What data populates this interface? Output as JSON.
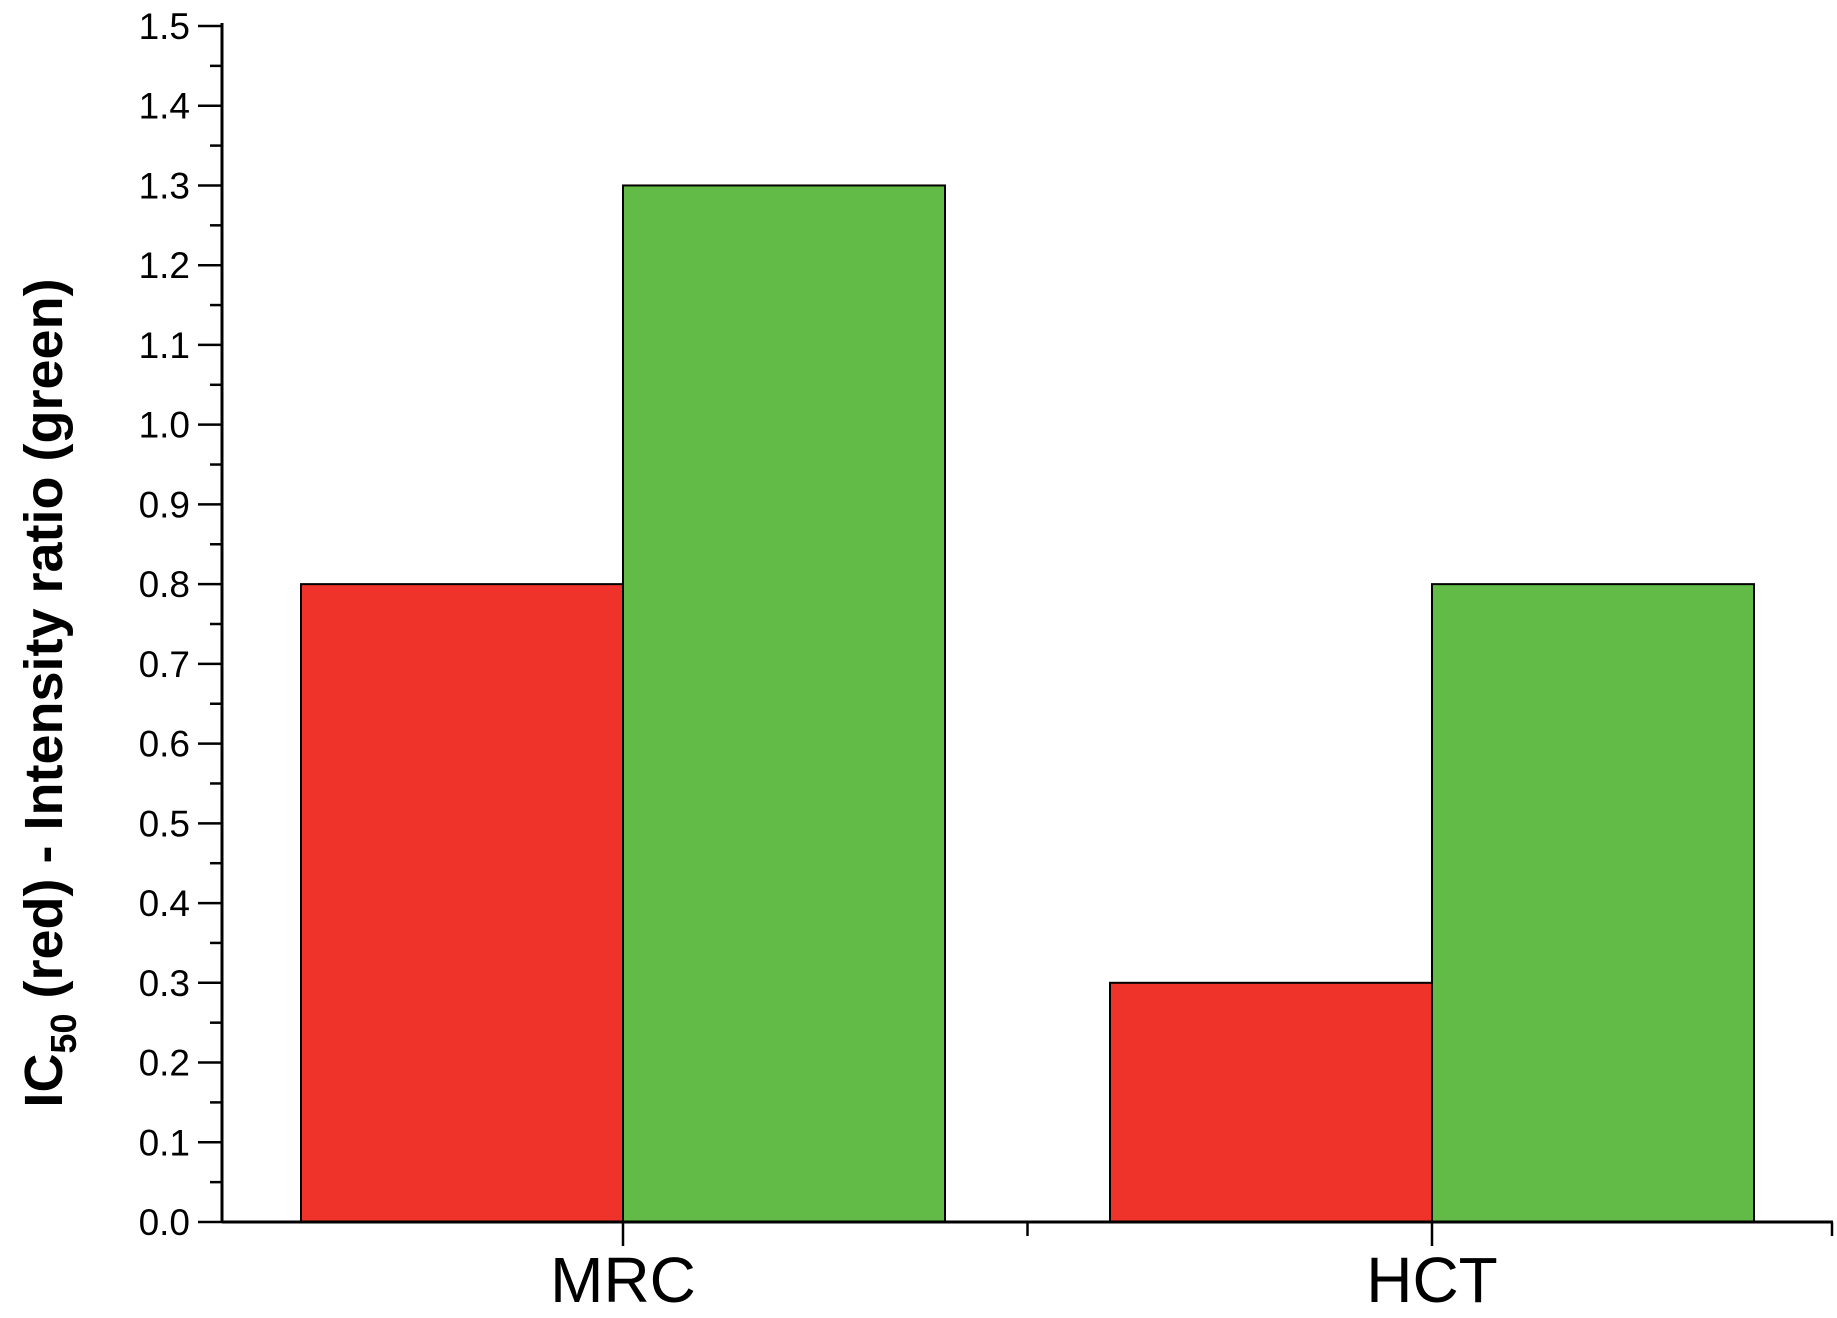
{
  "chart_data": {
    "type": "bar",
    "categories": [
      "MRC",
      "HCT"
    ],
    "series": [
      {
        "name": "IC50 (red)",
        "color": "#ef332b",
        "values": [
          0.8,
          0.3
        ]
      },
      {
        "name": "Intensity ratio (green)",
        "color": "#62bb46",
        "values": [
          1.3,
          0.8
        ]
      }
    ],
    "ylabel": {
      "prefix": "IC",
      "subscript": "50",
      "suffix": " (red) - Intensity ratio (green)"
    },
    "ylim": [
      0,
      1.5
    ],
    "yticks": [
      "0.0",
      "0.1",
      "0.2",
      "0.3",
      "0.4",
      "0.5",
      "0.6",
      "0.7",
      "0.8",
      "0.9",
      "1.0",
      "1.1",
      "1.2",
      "1.3",
      "1.4",
      "1.5"
    ],
    "grid": false,
    "legend": "none"
  }
}
